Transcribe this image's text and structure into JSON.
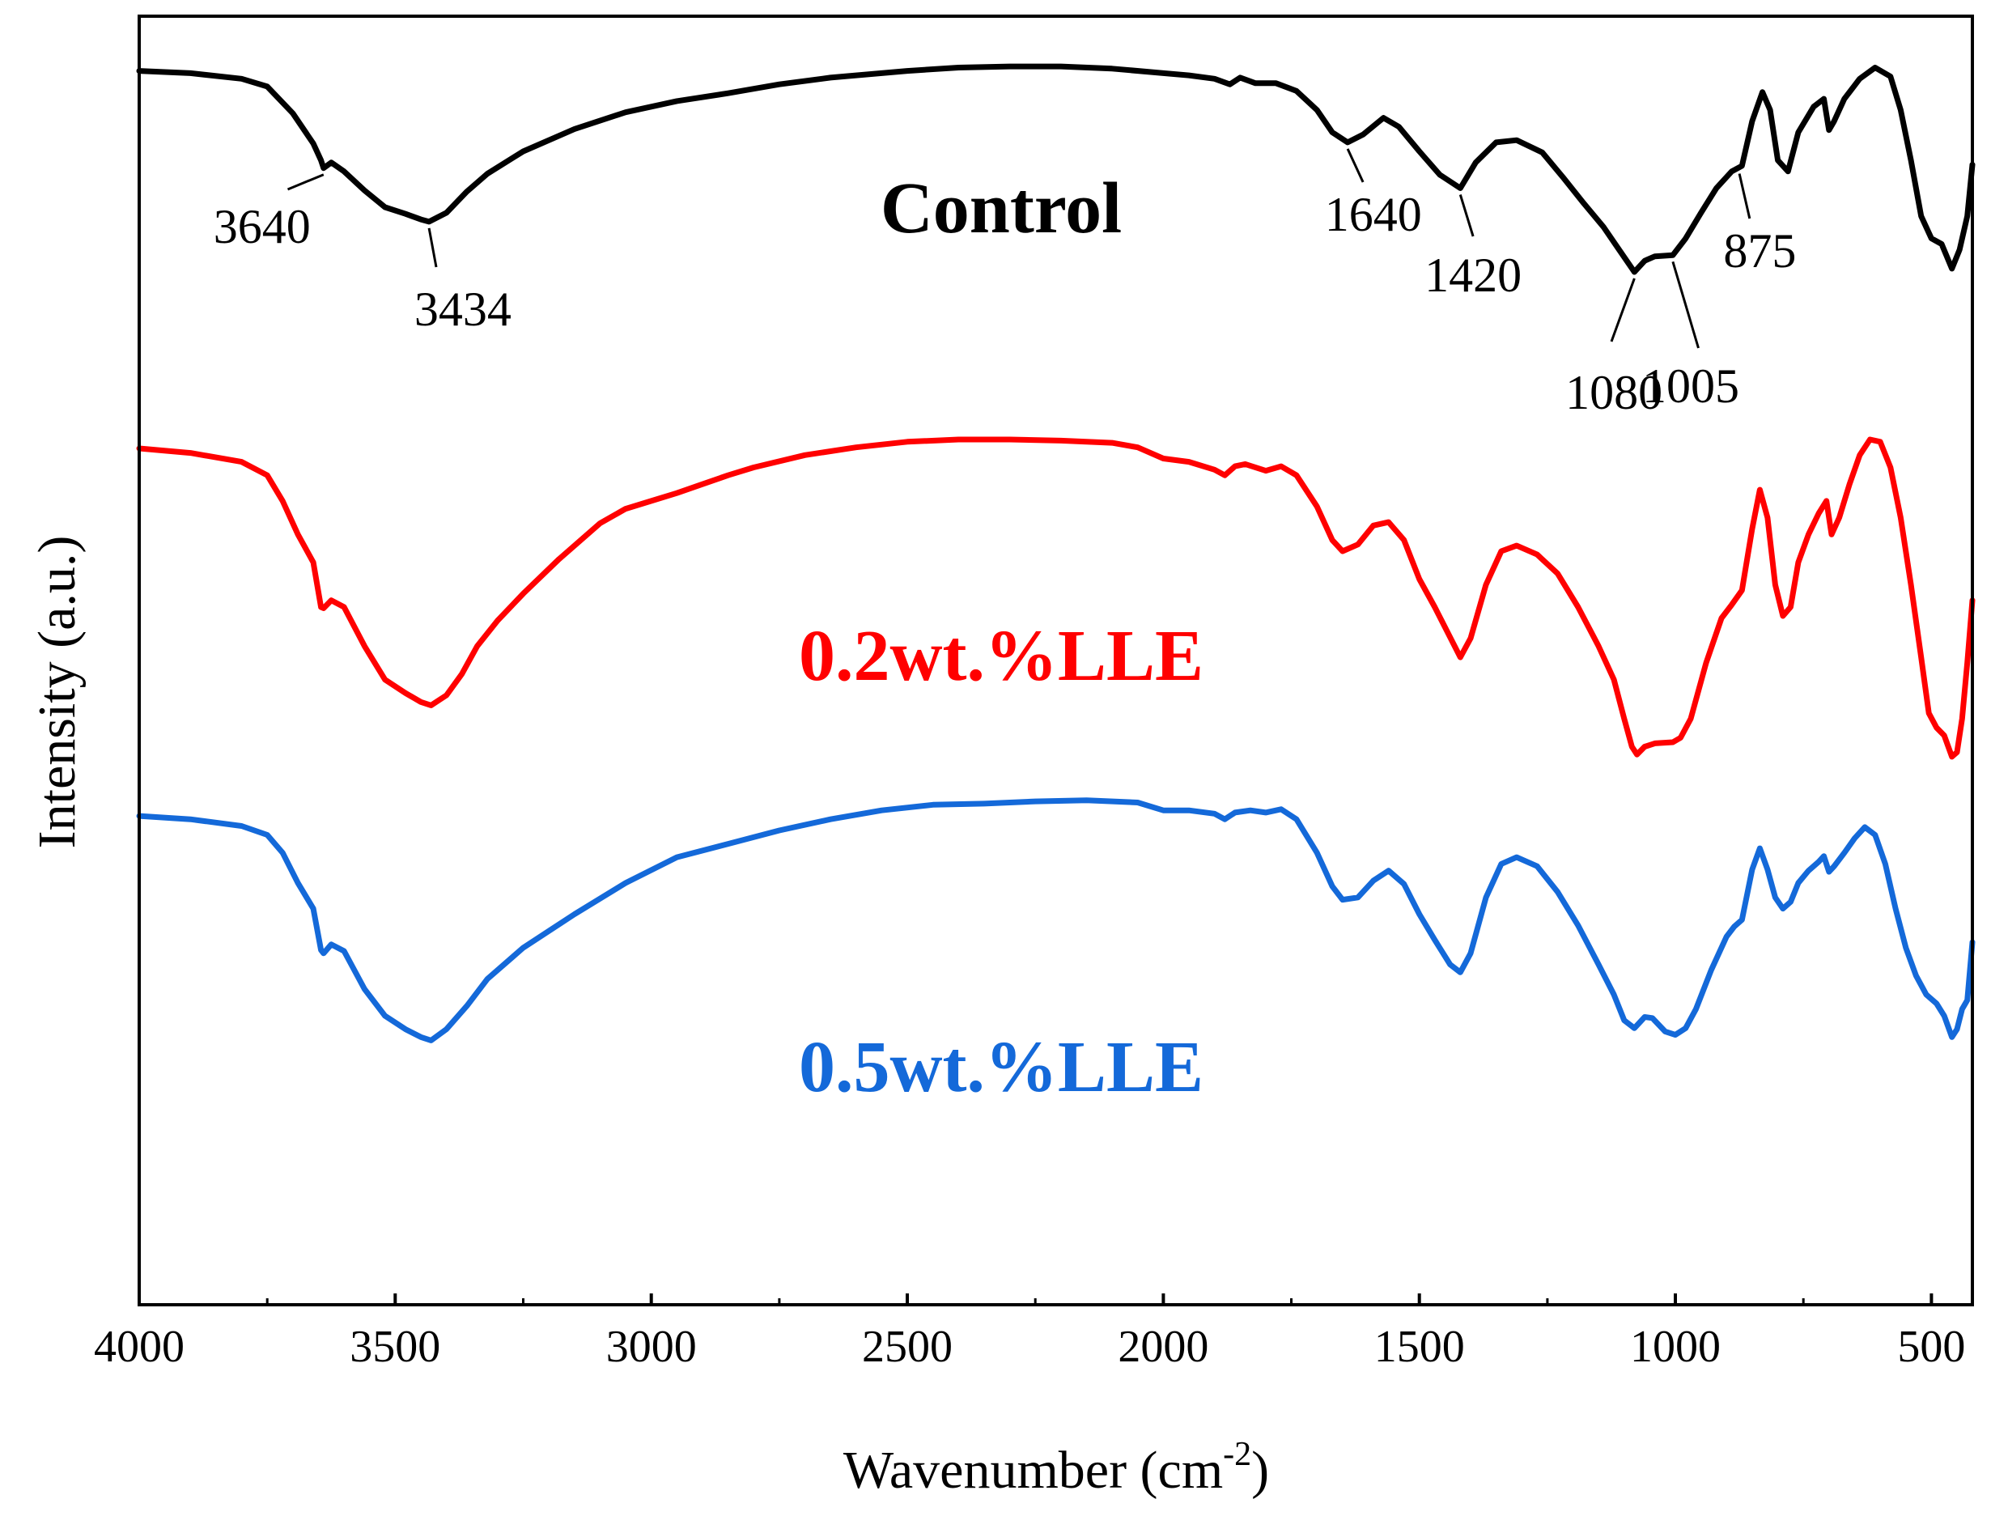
{
  "chart_data": {
    "type": "line",
    "title": "",
    "xlabel": "Wavenumber (cm",
    "xlabel_sup": "-2",
    "xlabel_close": ")",
    "ylabel": "Intensity (a.u.)",
    "xlim": [
      4000,
      420
    ],
    "x_reversed": true,
    "ylim": [
      0,
      100
    ],
    "grid": false,
    "x_ticks": [
      {
        "value": 4000,
        "label": "4000"
      },
      {
        "value": 3500,
        "label": "3500"
      },
      {
        "value": 3000,
        "label": "3000"
      },
      {
        "value": 2500,
        "label": "2500"
      },
      {
        "value": 2000,
        "label": "2000"
      },
      {
        "value": 1500,
        "label": "1500"
      },
      {
        "value": 1000,
        "label": "1000"
      },
      {
        "value": 500,
        "label": "500"
      }
    ],
    "series": [
      {
        "name": "Control",
        "color": "#000000",
        "points": [
          [
            4000,
            98.0
          ],
          [
            3900,
            97.8
          ],
          [
            3800,
            97.3
          ],
          [
            3750,
            96.6
          ],
          [
            3700,
            94.2
          ],
          [
            3660,
            91.5
          ],
          [
            3645,
            90.0
          ],
          [
            3640,
            89.3
          ],
          [
            3625,
            89.8
          ],
          [
            3600,
            89.0
          ],
          [
            3560,
            87.3
          ],
          [
            3520,
            85.8
          ],
          [
            3480,
            85.2
          ],
          [
            3450,
            84.7
          ],
          [
            3434,
            84.5
          ],
          [
            3400,
            85.3
          ],
          [
            3360,
            87.2
          ],
          [
            3320,
            88.8
          ],
          [
            3250,
            90.8
          ],
          [
            3150,
            92.8
          ],
          [
            3050,
            94.3
          ],
          [
            2950,
            95.3
          ],
          [
            2850,
            96.0
          ],
          [
            2750,
            96.8
          ],
          [
            2650,
            97.4
          ],
          [
            2500,
            98.0
          ],
          [
            2400,
            98.3
          ],
          [
            2300,
            98.4
          ],
          [
            2200,
            98.4
          ],
          [
            2100,
            98.2
          ],
          [
            2000,
            97.8
          ],
          [
            1950,
            97.6
          ],
          [
            1900,
            97.3
          ],
          [
            1870,
            96.8
          ],
          [
            1850,
            97.4
          ],
          [
            1820,
            96.9
          ],
          [
            1780,
            96.9
          ],
          [
            1740,
            96.2
          ],
          [
            1700,
            94.5
          ],
          [
            1670,
            92.5
          ],
          [
            1640,
            91.6
          ],
          [
            1610,
            92.3
          ],
          [
            1570,
            93.8
          ],
          [
            1540,
            93.0
          ],
          [
            1500,
            90.8
          ],
          [
            1460,
            88.7
          ],
          [
            1420,
            87.5
          ],
          [
            1390,
            89.8
          ],
          [
            1350,
            91.6
          ],
          [
            1310,
            91.8
          ],
          [
            1260,
            90.7
          ],
          [
            1220,
            88.5
          ],
          [
            1180,
            86.2
          ],
          [
            1140,
            84.0
          ],
          [
            1110,
            82.0
          ],
          [
            1080,
            80.0
          ],
          [
            1060,
            81.0
          ],
          [
            1040,
            81.4
          ],
          [
            1005,
            81.5
          ],
          [
            980,
            83.0
          ],
          [
            950,
            85.3
          ],
          [
            920,
            87.5
          ],
          [
            890,
            89.0
          ],
          [
            870,
            89.5
          ],
          [
            850,
            93.5
          ],
          [
            830,
            96.1
          ],
          [
            815,
            94.5
          ],
          [
            800,
            90.0
          ],
          [
            780,
            89.0
          ],
          [
            760,
            92.5
          ],
          [
            730,
            94.8
          ],
          [
            710,
            95.5
          ],
          [
            700,
            92.7
          ],
          [
            690,
            93.5
          ],
          [
            670,
            95.5
          ],
          [
            640,
            97.3
          ],
          [
            610,
            98.3
          ],
          [
            580,
            97.5
          ],
          [
            560,
            94.5
          ],
          [
            540,
            90.0
          ],
          [
            520,
            85.0
          ],
          [
            500,
            83.0
          ],
          [
            480,
            82.5
          ],
          [
            460,
            80.3
          ],
          [
            445,
            82.0
          ],
          [
            430,
            85.0
          ],
          [
            420,
            89.6
          ]
        ]
      },
      {
        "name": "0.2wt.%LLE",
        "color": "#ff0000",
        "points": [
          [
            4000,
            64.2
          ],
          [
            3900,
            63.8
          ],
          [
            3800,
            63.0
          ],
          [
            3750,
            61.8
          ],
          [
            3720,
            59.5
          ],
          [
            3690,
            56.5
          ],
          [
            3660,
            54.0
          ],
          [
            3645,
            50.0
          ],
          [
            3640,
            49.9
          ],
          [
            3625,
            50.6
          ],
          [
            3600,
            50.0
          ],
          [
            3560,
            46.5
          ],
          [
            3520,
            43.5
          ],
          [
            3480,
            42.3
          ],
          [
            3450,
            41.5
          ],
          [
            3430,
            41.2
          ],
          [
            3400,
            42.1
          ],
          [
            3370,
            44.0
          ],
          [
            3340,
            46.5
          ],
          [
            3300,
            48.8
          ],
          [
            3250,
            51.2
          ],
          [
            3180,
            54.3
          ],
          [
            3100,
            57.5
          ],
          [
            3050,
            58.8
          ],
          [
            3000,
            59.5
          ],
          [
            2950,
            60.2
          ],
          [
            2900,
            61.0
          ],
          [
            2850,
            61.8
          ],
          [
            2800,
            62.5
          ],
          [
            2700,
            63.6
          ],
          [
            2600,
            64.3
          ],
          [
            2500,
            64.8
          ],
          [
            2400,
            65.0
          ],
          [
            2300,
            65.0
          ],
          [
            2200,
            64.9
          ],
          [
            2100,
            64.7
          ],
          [
            2050,
            64.3
          ],
          [
            2000,
            63.3
          ],
          [
            1950,
            63.0
          ],
          [
            1900,
            62.3
          ],
          [
            1880,
            61.8
          ],
          [
            1860,
            62.6
          ],
          [
            1840,
            62.8
          ],
          [
            1800,
            62.2
          ],
          [
            1770,
            62.6
          ],
          [
            1740,
            61.8
          ],
          [
            1700,
            59.0
          ],
          [
            1670,
            56.0
          ],
          [
            1650,
            55.0
          ],
          [
            1620,
            55.6
          ],
          [
            1590,
            57.3
          ],
          [
            1560,
            57.6
          ],
          [
            1530,
            56.0
          ],
          [
            1500,
            52.5
          ],
          [
            1470,
            50.0
          ],
          [
            1440,
            47.3
          ],
          [
            1420,
            45.5
          ],
          [
            1400,
            47.2
          ],
          [
            1370,
            52.0
          ],
          [
            1340,
            55.0
          ],
          [
            1310,
            55.5
          ],
          [
            1270,
            54.7
          ],
          [
            1230,
            53.0
          ],
          [
            1190,
            50.0
          ],
          [
            1150,
            46.5
          ],
          [
            1120,
            43.5
          ],
          [
            1100,
            40.0
          ],
          [
            1085,
            37.5
          ],
          [
            1075,
            36.8
          ],
          [
            1060,
            37.5
          ],
          [
            1040,
            37.8
          ],
          [
            1005,
            37.9
          ],
          [
            990,
            38.3
          ],
          [
            970,
            40.0
          ],
          [
            940,
            45.0
          ],
          [
            910,
            49.0
          ],
          [
            890,
            50.2
          ],
          [
            870,
            51.5
          ],
          [
            850,
            57.0
          ],
          [
            835,
            60.5
          ],
          [
            820,
            58.0
          ],
          [
            805,
            52.0
          ],
          [
            790,
            49.2
          ],
          [
            775,
            50.0
          ],
          [
            760,
            54.0
          ],
          [
            740,
            56.5
          ],
          [
            720,
            58.4
          ],
          [
            705,
            59.5
          ],
          [
            695,
            56.5
          ],
          [
            680,
            58.0
          ],
          [
            660,
            61.0
          ],
          [
            640,
            63.6
          ],
          [
            620,
            65.0
          ],
          [
            600,
            64.8
          ],
          [
            580,
            62.5
          ],
          [
            560,
            58.0
          ],
          [
            540,
            52.0
          ],
          [
            520,
            45.5
          ],
          [
            505,
            40.5
          ],
          [
            490,
            39.2
          ],
          [
            475,
            38.5
          ],
          [
            460,
            36.6
          ],
          [
            450,
            37.0
          ],
          [
            440,
            40.0
          ],
          [
            430,
            45.0
          ],
          [
            420,
            50.6
          ]
        ]
      },
      {
        "name": "0.5wt.%LLE",
        "color": "#1469d9",
        "points": [
          [
            4000,
            31.3
          ],
          [
            3900,
            31.0
          ],
          [
            3800,
            30.4
          ],
          [
            3750,
            29.6
          ],
          [
            3720,
            28.0
          ],
          [
            3690,
            25.3
          ],
          [
            3660,
            23.0
          ],
          [
            3645,
            19.3
          ],
          [
            3640,
            19.0
          ],
          [
            3625,
            19.8
          ],
          [
            3600,
            19.2
          ],
          [
            3560,
            15.8
          ],
          [
            3520,
            13.4
          ],
          [
            3480,
            12.2
          ],
          [
            3450,
            11.5
          ],
          [
            3430,
            11.2
          ],
          [
            3400,
            12.2
          ],
          [
            3360,
            14.3
          ],
          [
            3320,
            16.7
          ],
          [
            3250,
            19.5
          ],
          [
            3150,
            22.5
          ],
          [
            3050,
            25.3
          ],
          [
            2950,
            27.6
          ],
          [
            2850,
            28.8
          ],
          [
            2750,
            30.0
          ],
          [
            2650,
            31.0
          ],
          [
            2550,
            31.8
          ],
          [
            2450,
            32.3
          ],
          [
            2350,
            32.4
          ],
          [
            2250,
            32.6
          ],
          [
            2150,
            32.7
          ],
          [
            2050,
            32.5
          ],
          [
            2000,
            31.8
          ],
          [
            1950,
            31.8
          ],
          [
            1900,
            31.5
          ],
          [
            1880,
            31.0
          ],
          [
            1860,
            31.6
          ],
          [
            1830,
            31.8
          ],
          [
            1800,
            31.6
          ],
          [
            1770,
            31.9
          ],
          [
            1740,
            31.0
          ],
          [
            1700,
            28.0
          ],
          [
            1670,
            25.0
          ],
          [
            1650,
            23.8
          ],
          [
            1620,
            24.0
          ],
          [
            1590,
            25.5
          ],
          [
            1560,
            26.4
          ],
          [
            1530,
            25.2
          ],
          [
            1500,
            22.5
          ],
          [
            1470,
            20.2
          ],
          [
            1440,
            18.0
          ],
          [
            1420,
            17.3
          ],
          [
            1400,
            19.0
          ],
          [
            1370,
            24.0
          ],
          [
            1340,
            27.0
          ],
          [
            1310,
            27.6
          ],
          [
            1270,
            26.8
          ],
          [
            1230,
            24.5
          ],
          [
            1190,
            21.5
          ],
          [
            1150,
            18.0
          ],
          [
            1120,
            15.3
          ],
          [
            1100,
            13.0
          ],
          [
            1080,
            12.3
          ],
          [
            1060,
            13.3
          ],
          [
            1045,
            13.2
          ],
          [
            1020,
            12.0
          ],
          [
            1000,
            11.7
          ],
          [
            980,
            12.3
          ],
          [
            960,
            14.0
          ],
          [
            930,
            17.5
          ],
          [
            900,
            20.5
          ],
          [
            885,
            21.4
          ],
          [
            870,
            22.0
          ],
          [
            850,
            26.5
          ],
          [
            835,
            28.4
          ],
          [
            820,
            26.5
          ],
          [
            805,
            24.0
          ],
          [
            790,
            23.0
          ],
          [
            775,
            23.6
          ],
          [
            760,
            25.3
          ],
          [
            740,
            26.4
          ],
          [
            720,
            27.2
          ],
          [
            710,
            27.7
          ],
          [
            700,
            26.3
          ],
          [
            690,
            26.8
          ],
          [
            670,
            28.0
          ],
          [
            650,
            29.3
          ],
          [
            630,
            30.3
          ],
          [
            610,
            29.6
          ],
          [
            590,
            27.0
          ],
          [
            570,
            23.0
          ],
          [
            550,
            19.5
          ],
          [
            530,
            17.0
          ],
          [
            510,
            15.3
          ],
          [
            490,
            14.5
          ],
          [
            475,
            13.4
          ],
          [
            460,
            11.5
          ],
          [
            450,
            12.2
          ],
          [
            440,
            14.0
          ],
          [
            430,
            14.8
          ],
          [
            420,
            20.0
          ]
        ]
      }
    ],
    "series_labels": [
      {
        "text": "Control",
        "color": "#000000"
      },
      {
        "text": "0.2wt.%LLE",
        "color": "#ff0000"
      },
      {
        "text": "0.5wt.%LLE",
        "color": "#1469d9"
      }
    ],
    "annotations": [
      {
        "label": "3640",
        "x": 3640
      },
      {
        "label": "3434",
        "x": 3434
      },
      {
        "label": "1640",
        "x": 1640
      },
      {
        "label": "1420",
        "x": 1420
      },
      {
        "label": "1080",
        "x": 1080
      },
      {
        "label": "1005",
        "x": 1005
      },
      {
        "label": "875",
        "x": 875
      }
    ]
  }
}
